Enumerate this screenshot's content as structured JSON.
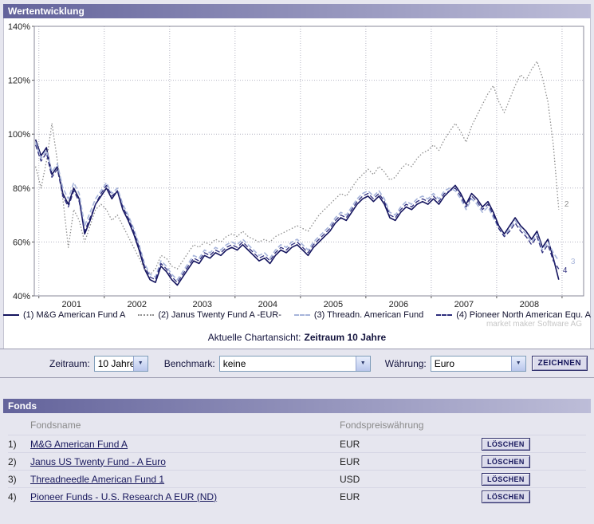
{
  "header": {
    "title": "Wertentwicklung"
  },
  "chart_data": {
    "type": "line",
    "title": "",
    "xlim": [
      2000.93,
      2009.33
    ],
    "ylim": [
      40,
      140
    ],
    "x_start": 2000.95,
    "x_step": 0.0833,
    "grid": true,
    "legend_position": "bottom",
    "y_ticks": [
      140,
      120,
      100,
      80,
      60,
      40
    ],
    "x_tick_labels": [
      "2001",
      "2002",
      "2003",
      "2004",
      "2005",
      "2006",
      "2007",
      "2008"
    ],
    "watermark": "market maker Software AG",
    "series": [
      {
        "name": "(1) M&G American Fund A",
        "color": "#14145e",
        "style": "solid",
        "width": 1.6,
        "end_label": "",
        "label_dx": 0,
        "label_dy": 0,
        "values": [
          98,
          92,
          95,
          85,
          88,
          78,
          74,
          80,
          76,
          63,
          68,
          74,
          77,
          80,
          76,
          79,
          72,
          68,
          63,
          57,
          50,
          46,
          45,
          51,
          49,
          46,
          44,
          47,
          50,
          53,
          52,
          55,
          54,
          56,
          55,
          57,
          58,
          57,
          59,
          57,
          55,
          53,
          54,
          52,
          55,
          57,
          56,
          58,
          59,
          57,
          55,
          58,
          60,
          62,
          64,
          67,
          69,
          68,
          71,
          74,
          76,
          77,
          75,
          77,
          74,
          69,
          68,
          71,
          73,
          72,
          74,
          75,
          74,
          76,
          74,
          77,
          79,
          81,
          78,
          74,
          78,
          76,
          73,
          75,
          71,
          66,
          63,
          66,
          69,
          66,
          64,
          61,
          64,
          58,
          61,
          54,
          46
        ]
      },
      {
        "name": "(2) Janus Twenty Fund A -EUR-",
        "color": "#8f8f8f",
        "style": "dotted",
        "width": 1.3,
        "end_label": "2",
        "label_dx": 7,
        "label_dy": -4,
        "values": [
          88,
          80,
          90,
          104,
          90,
          76,
          58,
          72,
          68,
          60,
          66,
          72,
          74,
          72,
          68,
          70,
          66,
          62,
          58,
          54,
          50,
          48,
          50,
          55,
          54,
          51,
          50,
          53,
          56,
          59,
          58,
          60,
          59,
          61,
          60,
          62,
          63,
          62,
          64,
          62,
          61,
          60,
          61,
          60,
          62,
          63,
          64,
          65,
          66,
          65,
          64,
          67,
          70,
          72,
          74,
          76,
          78,
          77,
          80,
          83,
          85,
          87,
          85,
          88,
          86,
          83,
          84,
          87,
          89,
          88,
          91,
          93,
          94,
          96,
          94,
          98,
          101,
          104,
          101,
          97,
          103,
          107,
          111,
          115,
          118,
          112,
          108,
          113,
          118,
          122,
          120,
          124,
          127,
          121,
          112,
          96,
          72
        ]
      },
      {
        "name": "(3) Threadn. American Fund",
        "color": "#a6b4da",
        "style": "dashed",
        "width": 1.6,
        "end_label": "3",
        "label_dx": 15,
        "label_dy": 4,
        "values": [
          97,
          91,
          94,
          86,
          89,
          80,
          76,
          82,
          78,
          66,
          71,
          76,
          79,
          82,
          78,
          80,
          74,
          70,
          65,
          59,
          52,
          48,
          47,
          53,
          51,
          48,
          46,
          49,
          52,
          55,
          54,
          57,
          56,
          58,
          57,
          59,
          60,
          59,
          61,
          59,
          57,
          55,
          56,
          54,
          57,
          59,
          58,
          60,
          61,
          59,
          57,
          60,
          62,
          64,
          66,
          69,
          71,
          70,
          73,
          76,
          78,
          79,
          77,
          79,
          76,
          71,
          70,
          73,
          75,
          74,
          76,
          77,
          76,
          78,
          76,
          79,
          80,
          79,
          76,
          72,
          76,
          74,
          71,
          73,
          69,
          65,
          62,
          65,
          68,
          65,
          63,
          60,
          63,
          57,
          60,
          56,
          53
        ]
      },
      {
        "name": "(4) Pioneer North American Equ. A",
        "color": "#2d2d7d",
        "style": "dashed",
        "width": 1.3,
        "end_label": "4",
        "label_dx": 5,
        "label_dy": 5,
        "values": [
          96,
          90,
          93,
          84,
          87,
          77,
          73,
          79,
          75,
          64,
          69,
          74,
          78,
          81,
          77,
          79,
          73,
          69,
          64,
          58,
          51,
          47,
          46,
          52,
          50,
          47,
          45,
          48,
          51,
          54,
          53,
          56,
          55,
          57,
          56,
          58,
          59,
          58,
          60,
          58,
          56,
          54,
          55,
          53,
          56,
          58,
          57,
          59,
          60,
          58,
          56,
          59,
          61,
          63,
          65,
          68,
          70,
          69,
          72,
          75,
          77,
          78,
          76,
          78,
          75,
          70,
          69,
          72,
          74,
          73,
          75,
          76,
          75,
          77,
          75,
          78,
          79,
          80,
          77,
          73,
          77,
          75,
          72,
          74,
          70,
          65,
          62,
          64,
          67,
          64,
          62,
          59,
          62,
          56,
          59,
          53,
          50
        ]
      }
    ]
  },
  "caption": {
    "prefix": "Aktuelle Chartansicht:",
    "value": "Zeitraum 10 Jahre"
  },
  "controls": {
    "zeitraum_label": "Zeitraum:",
    "zeitraum_value": "10 Jahre",
    "benchmark_label": "Benchmark:",
    "benchmark_value": "keine",
    "waehrung_label": "Währung:",
    "waehrung_value": "Euro",
    "draw_button": "ZEICHNEN"
  },
  "fonds": {
    "title": "Fonds",
    "col_name": "Fondsname",
    "col_currency": "Fondspreiswährung",
    "delete_label": "LÖSCHEN",
    "rows": [
      {
        "num": "1)",
        "name": "M&G American Fund A",
        "currency": "EUR"
      },
      {
        "num": "2)",
        "name": "Janus US Twenty Fund - A Euro",
        "currency": "EUR"
      },
      {
        "num": "3)",
        "name": "Threadneedle American Fund 1",
        "currency": "USD"
      },
      {
        "num": "4)",
        "name": "Pioneer Funds - U.S. Research A EUR (ND)",
        "currency": "EUR"
      }
    ]
  }
}
